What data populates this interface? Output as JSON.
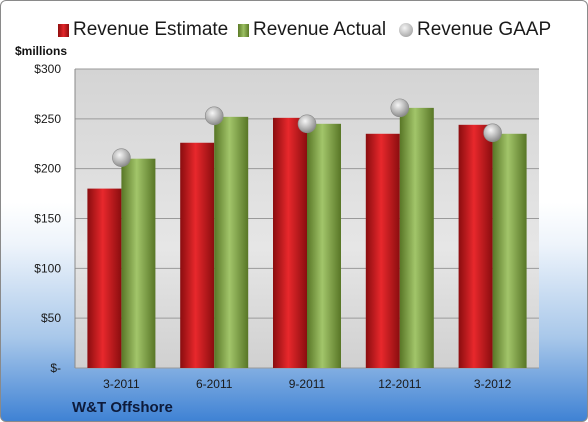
{
  "chart_data": {
    "type": "bar",
    "title": "",
    "ylabel": "$millions",
    "xlabel": "",
    "company": "W&T Offshore",
    "categories": [
      "3-2011",
      "6-2011",
      "9-2011",
      "12-2011",
      "3-2012"
    ],
    "series": [
      {
        "name": "Revenue Estimate",
        "kind": "bar",
        "color": "#d7191c",
        "values": [
          180,
          226,
          251,
          235,
          244
        ]
      },
      {
        "name": "Revenue Actual",
        "kind": "bar",
        "color": "#8fb151",
        "values": [
          210,
          252,
          245,
          261,
          235
        ]
      },
      {
        "name": "Revenue GAAP",
        "kind": "marker",
        "color": "#b0b0b0",
        "values": [
          211,
          253,
          245,
          261,
          236
        ]
      }
    ],
    "ylim": [
      0,
      300
    ],
    "yticks": [
      {
        "value": 0,
        "label": "$-"
      },
      {
        "value": 50,
        "label": "$50"
      },
      {
        "value": 100,
        "label": "$100"
      },
      {
        "value": 150,
        "label": "$150"
      },
      {
        "value": 200,
        "label": "$200"
      },
      {
        "value": 250,
        "label": "$250"
      },
      {
        "value": 300,
        "label": "$300"
      }
    ],
    "grid": true,
    "legend_position": "top"
  }
}
